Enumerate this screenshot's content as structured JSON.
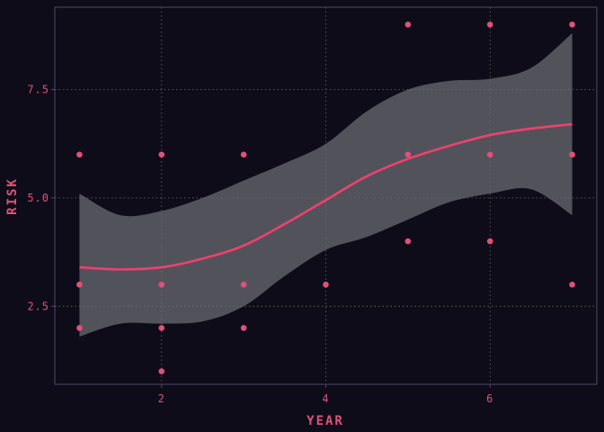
{
  "chart_data": {
    "type": "scatter",
    "title": "",
    "xlabel": "YEAR",
    "ylabel": "RISK",
    "xlim": [
      0.7,
      7.3
    ],
    "ylim": [
      0.7,
      9.4
    ],
    "x_ticks": [
      2,
      4,
      6
    ],
    "y_ticks": [
      2.5,
      5.0,
      7.5
    ],
    "x_tick_labels": [
      "2",
      "4",
      "6"
    ],
    "y_tick_labels": [
      "2.5",
      "5.0",
      "7.5"
    ],
    "grid": true,
    "legend": "none",
    "points": [
      {
        "x": 1,
        "y": 6
      },
      {
        "x": 1,
        "y": 3
      },
      {
        "x": 1,
        "y": 2
      },
      {
        "x": 2,
        "y": 6
      },
      {
        "x": 2,
        "y": 3
      },
      {
        "x": 2,
        "y": 2
      },
      {
        "x": 2,
        "y": 1
      },
      {
        "x": 3,
        "y": 6
      },
      {
        "x": 3,
        "y": 3
      },
      {
        "x": 3,
        "y": 2
      },
      {
        "x": 4,
        "y": 3
      },
      {
        "x": 5,
        "y": 9
      },
      {
        "x": 5,
        "y": 6
      },
      {
        "x": 5,
        "y": 4
      },
      {
        "x": 6,
        "y": 9
      },
      {
        "x": 6,
        "y": 6
      },
      {
        "x": 6,
        "y": 4
      },
      {
        "x": 7,
        "y": 9
      },
      {
        "x": 7,
        "y": 6
      },
      {
        "x": 7,
        "y": 3
      }
    ],
    "smooth": {
      "method": "loess",
      "x": [
        1.0,
        1.5,
        2.0,
        2.5,
        3.0,
        3.5,
        4.0,
        4.5,
        5.0,
        5.5,
        6.0,
        6.5,
        7.0
      ],
      "fit": [
        3.4,
        3.35,
        3.4,
        3.6,
        3.9,
        4.4,
        4.95,
        5.5,
        5.9,
        6.2,
        6.45,
        6.6,
        6.7
      ],
      "lower": [
        1.8,
        2.1,
        2.1,
        2.15,
        2.5,
        3.2,
        3.8,
        4.1,
        4.5,
        4.9,
        5.1,
        5.2,
        4.6
      ],
      "upper": [
        5.1,
        4.6,
        4.7,
        5.0,
        5.4,
        5.8,
        6.25,
        7.0,
        7.5,
        7.7,
        7.75,
        8.0,
        8.8
      ]
    },
    "colors": {
      "background": "#0e0c18",
      "panel_border": "#4a4a6a",
      "grid": "#6f6a5a",
      "points": "#e0507a",
      "fit_line": "#f0406e",
      "ribbon": "#6e6e76",
      "text": "#e0507a"
    }
  }
}
